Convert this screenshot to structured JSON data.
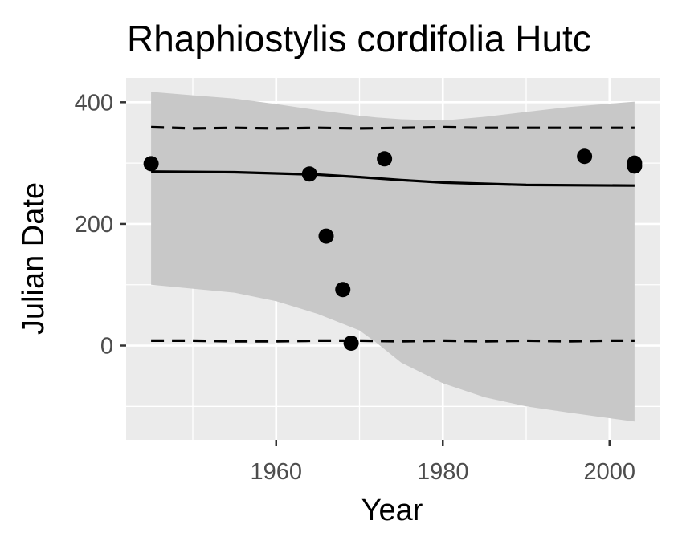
{
  "chart_data": {
    "type": "scatter",
    "title": "Rhaphiostylis cordifolia Hutc",
    "xlabel": "Year",
    "ylabel": "Julian Date",
    "xlim": [
      1942,
      2006
    ],
    "ylim": [
      -155,
      440
    ],
    "x_ticks": [
      1960,
      1980,
      2000
    ],
    "x_tick_labels": [
      "1960",
      "1980",
      "2000"
    ],
    "y_ticks": [
      0,
      200,
      400
    ],
    "y_tick_labels": [
      "0",
      "200",
      "400"
    ],
    "grid": true,
    "legend": "none",
    "colors": {
      "panel": "#ebebeb",
      "gridline": "#ffffff",
      "ribbon": "#c8c8c8",
      "points": "#000000",
      "line": "#000000",
      "tick_text": "#4d4d4d",
      "tick_mark": "#333333"
    },
    "points": [
      {
        "x": 1945,
        "y": 299
      },
      {
        "x": 1964,
        "y": 282
      },
      {
        "x": 1966,
        "y": 180
      },
      {
        "x": 1968,
        "y": 92
      },
      {
        "x": 1969,
        "y": 4
      },
      {
        "x": 1973,
        "y": 307
      },
      {
        "x": 1997,
        "y": 311
      },
      {
        "x": 2003,
        "y": 300
      },
      {
        "x": 2003,
        "y": 295
      }
    ],
    "fit_line": {
      "x": [
        1945,
        1955,
        1965,
        1970,
        1975,
        1980,
        1990,
        2003
      ],
      "y": [
        286,
        285,
        281,
        277,
        272,
        268,
        264,
        263
      ]
    },
    "ribbon": {
      "x": [
        1945,
        1955,
        1960,
        1965,
        1970,
        1972,
        1975,
        1980,
        1985,
        1990,
        1995,
        2003
      ],
      "upper": [
        417,
        406,
        397,
        387,
        378,
        375,
        372,
        370,
        376,
        384,
        392,
        401
      ],
      "lower": [
        100,
        87,
        73,
        52,
        25,
        5,
        -28,
        -62,
        -85,
        -100,
        -110,
        -125
      ]
    },
    "dashed_upper": {
      "x": [
        1945,
        1950,
        1955,
        1960,
        1965,
        1970,
        1975,
        1980,
        1985,
        1990,
        1995,
        2000,
        2003
      ],
      "y": [
        359,
        357,
        358,
        357,
        358,
        357,
        358,
        359,
        358,
        358,
        358,
        358,
        358
      ]
    },
    "dashed_lower": {
      "x": [
        1945,
        1950,
        1955,
        1960,
        1965,
        1970,
        1975,
        1980,
        1985,
        1990,
        1995,
        2000,
        2003
      ],
      "y": [
        8,
        8,
        7,
        7,
        8,
        8,
        7,
        8,
        7,
        8,
        7,
        8,
        8
      ]
    }
  }
}
